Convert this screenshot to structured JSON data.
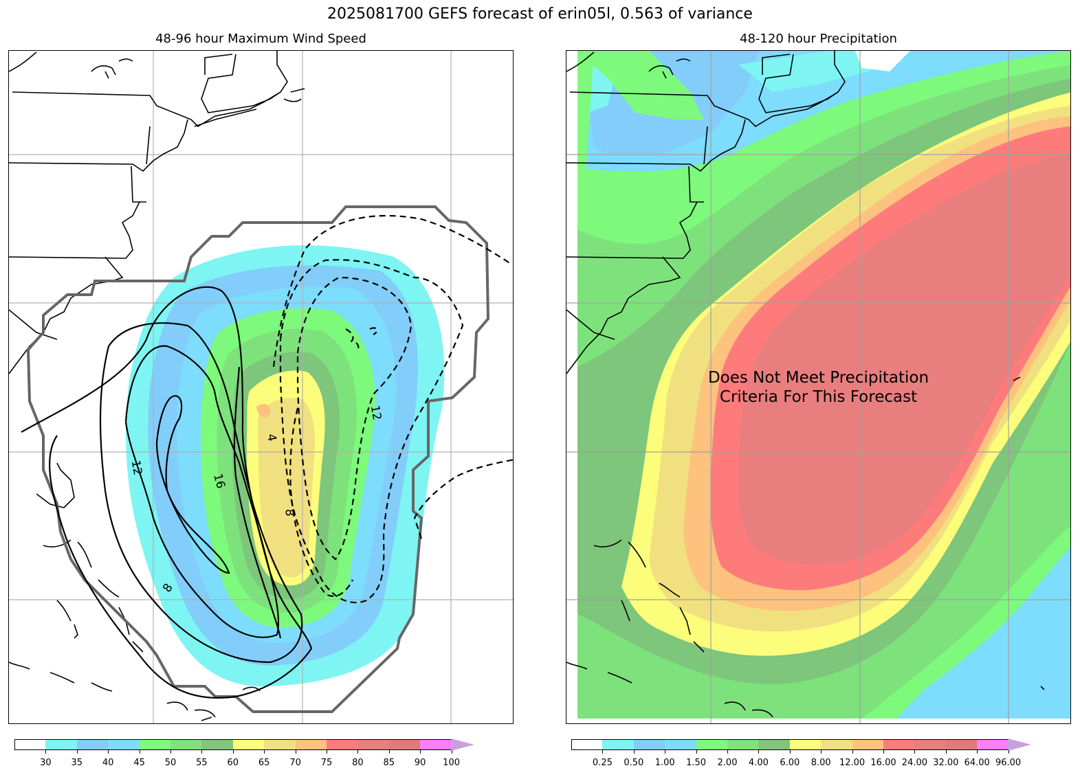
{
  "figure": {
    "title": "2025081700 GEFS forecast of erin05l, 0.563 of variance"
  },
  "left_panel": {
    "title": "48-96 hour Maximum Wind Speed",
    "contour_labels": [
      "12",
      "16",
      "8",
      "4",
      "8",
      "12"
    ],
    "colorbar": {
      "labels": [
        "30",
        "35",
        "40",
        "45",
        "50",
        "55",
        "60",
        "65",
        "70",
        "75",
        "80",
        "85",
        "90",
        "100"
      ],
      "colors": [
        "#ffffff",
        "#7ef5f3",
        "#82cdf9",
        "#7edcfd",
        "#7dfa7c",
        "#7ee27c",
        "#7dc67b",
        "#fdfd7c",
        "#f1e07f",
        "#fdc27d",
        "#fd7b7b",
        "#e97e7e",
        "#e27a7a",
        "#fd7dfd",
        "#c8a0e0"
      ]
    }
  },
  "right_panel": {
    "title": "48-120 hour Precipitation",
    "message": "Does Not Meet Precipitation\nCriteria For This Forecast",
    "colorbar": {
      "labels": [
        "0.25",
        "0.50",
        "1.00",
        "1.50",
        "2.00",
        "4.00",
        "6.00",
        "8.00",
        "12.00",
        "16.00",
        "24.00",
        "32.00",
        "64.00",
        "96.00"
      ],
      "colors": [
        "#ffffff",
        "#7ef5f3",
        "#82cdf9",
        "#7edcfd",
        "#7dfa7c",
        "#7ee27c",
        "#7dc67b",
        "#fdfd7c",
        "#f1e07f",
        "#fdc27d",
        "#fd7b7b",
        "#e97e7e",
        "#e27a7a",
        "#fd7dfd",
        "#c8a0e0"
      ]
    }
  }
}
